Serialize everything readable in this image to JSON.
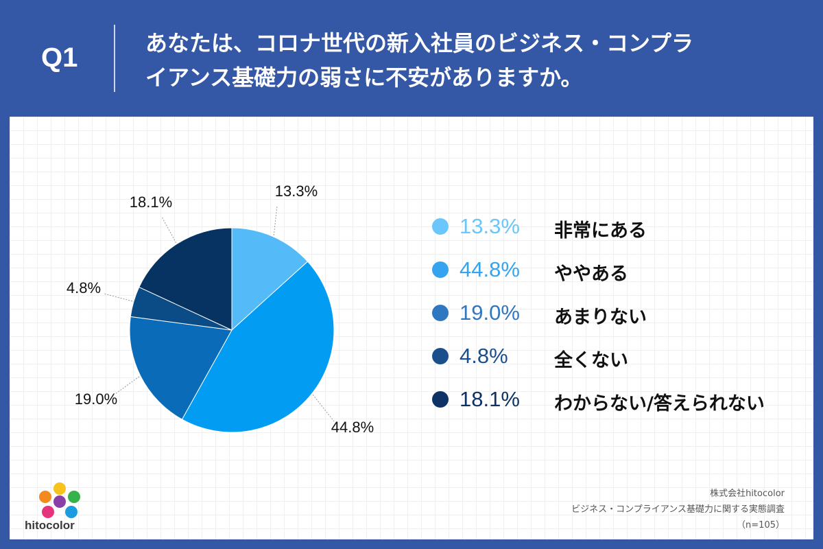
{
  "header": {
    "q_label": "Q1",
    "question_line1": "あなたは、コロナ世代の新入社員のビジネス・コンプラ",
    "question_line2": "イアンス基礎力の弱さに不安がありますか。"
  },
  "chart_data": {
    "type": "pie",
    "start_angle_deg": 0,
    "direction": "clockwise",
    "slices": [
      {
        "label": "非常にある",
        "value": 13.3,
        "display": "13.3%",
        "color": "#55bbf8"
      },
      {
        "label": "ややある",
        "value": 44.8,
        "display": "44.8%",
        "color": "#039cf3"
      },
      {
        "label": "あまりない",
        "value": 19.0,
        "display": "19.0%",
        "color": "#0a6cb8"
      },
      {
        "label": "全くない",
        "value": 4.8,
        "display": "4.8%",
        "color": "#0b4b86"
      },
      {
        "label": "わからない/答えられない",
        "value": 18.1,
        "display": "18.1%",
        "color": "#073363"
      }
    ]
  },
  "legend": {
    "items": [
      {
        "value": "13.3%",
        "label": "非常にある",
        "color": "#6ac6fb"
      },
      {
        "value": "44.8%",
        "label": "ややある",
        "color": "#36a3ef"
      },
      {
        "value": "19.0%",
        "label": "あまりない",
        "color": "#2f77c0"
      },
      {
        "value": "4.8%",
        "label": "全くない",
        "color": "#1b4f8c"
      },
      {
        "value": "18.1%",
        "label": "わからない/答えられない",
        "color": "#0e3266"
      }
    ]
  },
  "logo": {
    "text": "hitocolor"
  },
  "source": {
    "company": "株式会社hitocolor",
    "survey": "ビジネス・コンプライアンス基礎力に関する実態調査",
    "n": "（n=105）"
  }
}
